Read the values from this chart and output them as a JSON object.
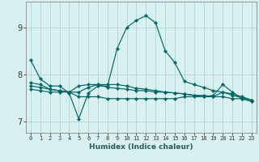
{
  "title": "",
  "xlabel": "Humidex (Indice chaleur)",
  "bg_color": "#d8f0f0",
  "grid_color": "#b8d8d8",
  "line_color": "#006868",
  "x_values": [
    0,
    1,
    2,
    3,
    4,
    5,
    6,
    7,
    8,
    9,
    10,
    11,
    12,
    13,
    14,
    15,
    16,
    17,
    18,
    19,
    20,
    21,
    22,
    23
  ],
  "lines": [
    [
      8.3,
      7.9,
      7.75,
      7.75,
      7.6,
      7.05,
      7.6,
      7.75,
      7.75,
      8.55,
      9.0,
      9.15,
      9.25,
      9.1,
      8.5,
      8.25,
      7.85,
      7.78,
      7.72,
      7.65,
      7.62,
      7.55,
      7.5,
      7.45
    ],
    [
      7.82,
      7.78,
      7.68,
      7.65,
      7.62,
      7.75,
      7.78,
      7.78,
      7.72,
      7.7,
      7.68,
      7.65,
      7.65,
      7.62,
      7.62,
      7.6,
      7.58,
      7.55,
      7.55,
      7.52,
      7.62,
      7.58,
      7.52,
      7.45
    ],
    [
      7.68,
      7.65,
      7.62,
      7.62,
      7.62,
      7.62,
      7.72,
      7.78,
      7.78,
      7.78,
      7.75,
      7.7,
      7.68,
      7.65,
      7.62,
      7.6,
      7.58,
      7.55,
      7.52,
      7.52,
      7.52,
      7.48,
      7.48,
      7.42
    ],
    [
      7.75,
      7.72,
      7.68,
      7.65,
      7.62,
      7.52,
      7.52,
      7.52,
      7.48,
      7.48,
      7.48,
      7.48,
      7.48,
      7.48,
      7.48,
      7.48,
      7.52,
      7.52,
      7.52,
      7.55,
      7.78,
      7.62,
      7.48,
      7.42
    ]
  ],
  "ylim": [
    6.75,
    9.55
  ],
  "yticks": [
    7,
    8,
    9
  ],
  "xticks": [
    0,
    1,
    2,
    3,
    4,
    5,
    6,
    7,
    8,
    9,
    10,
    11,
    12,
    13,
    14,
    15,
    16,
    17,
    18,
    19,
    20,
    21,
    22,
    23
  ]
}
